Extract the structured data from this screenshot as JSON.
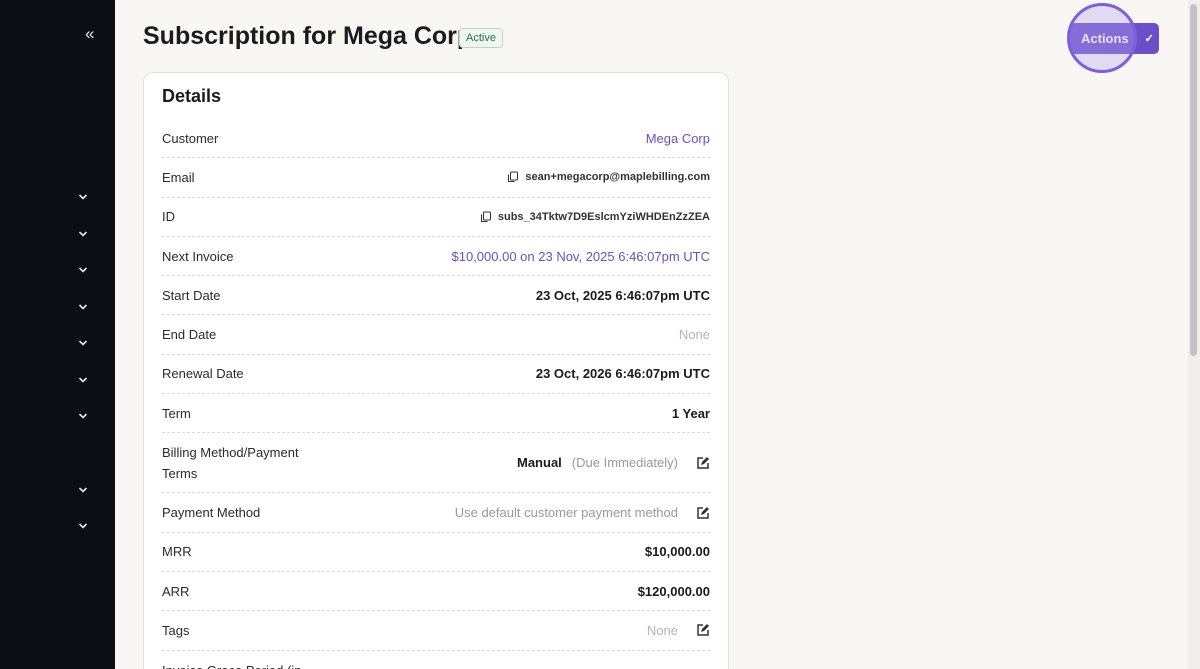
{
  "sidebar": {
    "collapse_icon": "double-chevron-left",
    "chevron_count": 9
  },
  "header": {
    "title": "Subscription for Mega Corp",
    "status": "Active",
    "actions_label": "Actions"
  },
  "colors": {
    "accent": "#6b4fc8",
    "sidebar": "#0b0e14",
    "status_bg": "#eef6f0"
  },
  "details": {
    "title": "Details",
    "rows": [
      {
        "label": "Customer",
        "value": "Mega Corp"
      },
      {
        "label": "Email",
        "value": "sean+megacorp@maplebilling.com"
      },
      {
        "label": "ID",
        "value": "subs_34Tktw7D9EslcmYziWHDEnZzZEA"
      },
      {
        "label": "Next Invoice",
        "value": "$10,000.00 on 23 Nov, 2025 6:46:07pm UTC"
      },
      {
        "label": "Start Date",
        "value": "23 Oct, 2025 6:46:07pm UTC"
      },
      {
        "label": "End Date",
        "value": "None"
      },
      {
        "label": "Renewal Date",
        "value": "23 Oct, 2026 6:46:07pm UTC"
      },
      {
        "label": "Term",
        "value": "1 Year"
      },
      {
        "label": "Billing Method/Payment Terms",
        "value": "Manual",
        "secondary": "(Due Immediately)"
      },
      {
        "label": "Payment Method",
        "value": "Use default customer payment method"
      },
      {
        "label": "MRR",
        "value": "$10,000.00"
      },
      {
        "label": "ARR",
        "value": "$120,000.00"
      },
      {
        "label": "Tags",
        "value": "None"
      },
      {
        "label": "Invoice Grace Period (in"
      }
    ]
  }
}
